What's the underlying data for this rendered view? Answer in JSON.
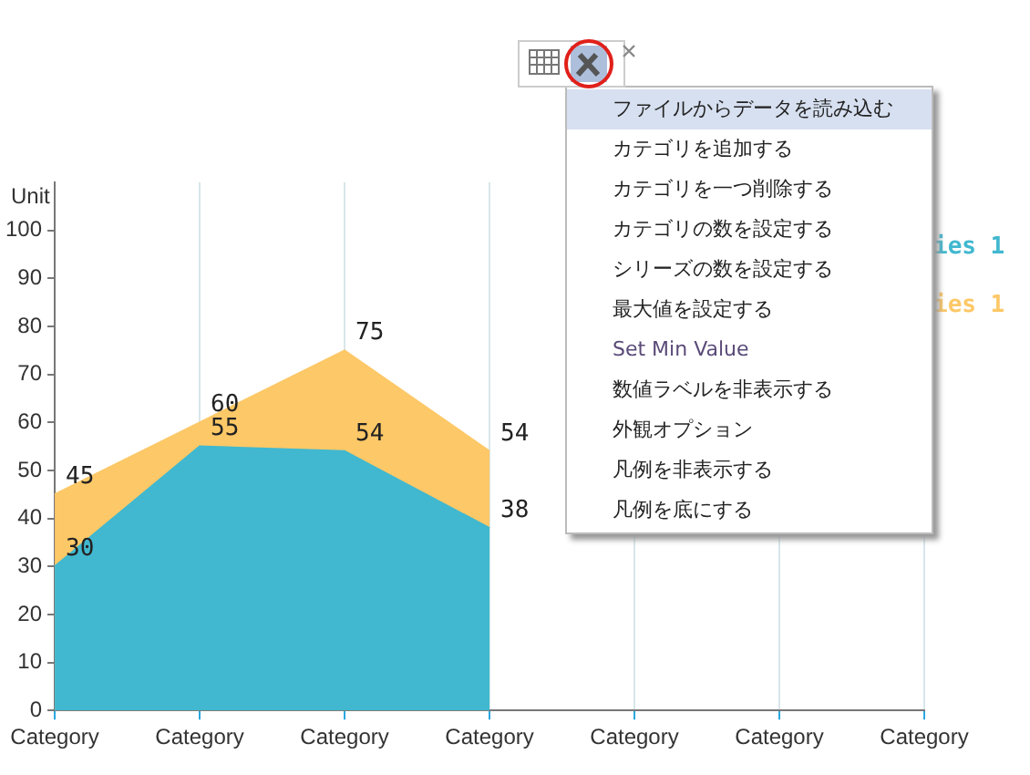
{
  "chart_data": {
    "type": "area",
    "ylabel": "Unit",
    "categories": [
      "Category",
      "Category",
      "Category",
      "Category",
      "Category",
      "Category",
      "Category"
    ],
    "series": [
      {
        "name": "ies 1",
        "color": "#41b8cf",
        "values": [
          30,
          55,
          54,
          38,
          null,
          null,
          null
        ],
        "value_labels": [
          "30",
          "55",
          "54",
          "38",
          null,
          null,
          null
        ]
      },
      {
        "name": "ies 1",
        "color": "#fdc867",
        "values": [
          45,
          60,
          75,
          54,
          null,
          null,
          null
        ],
        "value_labels": [
          "45",
          "60",
          "75",
          "54",
          null,
          null,
          null
        ]
      }
    ],
    "ylim": [
      0,
      110
    ],
    "yticks": [
      0,
      10,
      20,
      30,
      40,
      50,
      60,
      70,
      80,
      90,
      100
    ],
    "grid": "x",
    "legend": "right",
    "annotations": [
      "ファイルからデータを読み込む",
      "カテゴリを追加する",
      "カテゴリを一つ削除する",
      "カテゴリの数を設定する",
      "シリーズの数を設定する",
      "最大値を設定する",
      "Set Min Value",
      "数値ラベルを非表示する",
      "外観オプション",
      "凡例を非表示する",
      "凡例を底にする"
    ]
  }
}
